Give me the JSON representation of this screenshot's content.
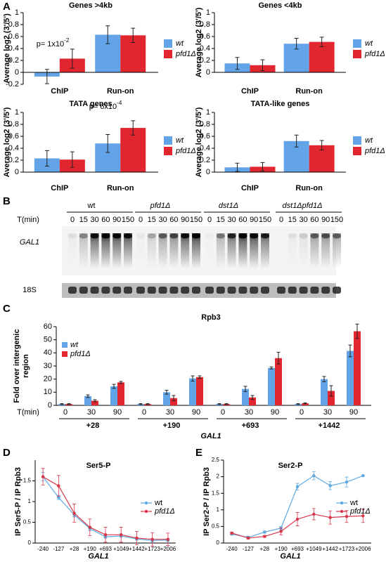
{
  "panel_labels": [
    "A",
    "B",
    "C",
    "D",
    "E"
  ],
  "blot": {
    "strains": [
      "wt",
      "pfd1Δ",
      "dst1Δ",
      "dst1Δpfd1Δ"
    ],
    "time_label": "T(min)",
    "times": [
      0,
      15,
      30,
      60,
      90,
      150,
      0,
      15,
      30,
      60,
      90,
      150,
      0,
      15,
      30,
      60,
      90,
      150,
      0,
      15,
      30,
      60,
      90,
      150
    ],
    "gene_label": "GAL1",
    "loading_label": "18S"
  },
  "chart_data": [
    {
      "type": "bar",
      "title": "Genes >4kb",
      "ylabel": "Average log2 (3'/5')",
      "categories": [
        "ChIP",
        "Run-on"
      ],
      "series": [
        {
          "name": "wt",
          "color": "#63a4e8",
          "values": [
            -0.07,
            0.63
          ],
          "errors": [
            0.12,
            0.15
          ]
        },
        {
          "name": "pfd1Δ",
          "color": "#e2262f",
          "values": [
            0.23,
            0.62
          ],
          "errors": [
            0.16,
            0.12
          ]
        }
      ],
      "ylim": [
        -0.2,
        1
      ],
      "yticks": [
        -0.2,
        0,
        0.2,
        0.4,
        0.6,
        0.8,
        1
      ],
      "annotations": [
        {
          "text": "p= 1x10",
          "superscript": "-2"
        }
      ]
    },
    {
      "type": "bar",
      "title": "Genes <4kb",
      "ylabel": "Average log2 (3'/5')",
      "categories": [
        "ChIP",
        "Run-on"
      ],
      "series": [
        {
          "name": "wt",
          "color": "#63a4e8",
          "values": [
            0.15,
            0.48
          ],
          "errors": [
            0.1,
            0.09
          ]
        },
        {
          "name": "pfd1Δ",
          "color": "#e2262f",
          "values": [
            0.12,
            0.51
          ],
          "errors": [
            0.09,
            0.08
          ]
        }
      ],
      "ylim": [
        0,
        1
      ],
      "yticks": [
        0,
        0.2,
        0.4,
        0.6,
        0.8,
        1
      ]
    },
    {
      "type": "bar",
      "title": "TATA genes",
      "ylabel": "Average log2 (3'/5')",
      "categories": [
        "ChIP",
        "Run-on"
      ],
      "series": [
        {
          "name": "wt",
          "color": "#63a4e8",
          "values": [
            0.23,
            0.48
          ],
          "errors": [
            0.13,
            0.15
          ]
        },
        {
          "name": "pfd1Δ",
          "color": "#e2262f",
          "values": [
            0.21,
            0.74
          ],
          "errors": [
            0.13,
            0.12
          ]
        }
      ],
      "ylim": [
        0,
        1
      ],
      "yticks": [
        0,
        0.2,
        0.4,
        0.6,
        0.8,
        1
      ],
      "annotations": [
        {
          "text": "p= 6x10",
          "superscript": "-4"
        }
      ]
    },
    {
      "type": "bar",
      "title": "TATA-like genes",
      "ylabel": "Average log2 (3'/5')",
      "categories": [
        "ChIP",
        "Run-on"
      ],
      "series": [
        {
          "name": "wt",
          "color": "#63a4e8",
          "values": [
            0.08,
            0.52
          ],
          "errors": [
            0.07,
            0.1
          ]
        },
        {
          "name": "pfd1Δ",
          "color": "#e2262f",
          "values": [
            0.09,
            0.45
          ],
          "errors": [
            0.07,
            0.08
          ]
        }
      ],
      "ylim": [
        0,
        1
      ],
      "yticks": [
        0,
        0.2,
        0.4,
        0.6,
        0.8,
        1
      ]
    },
    {
      "type": "grouped_bar",
      "title": "Rpb3",
      "ylabel": [
        "Fold over intergenic",
        "region"
      ],
      "xlabel": "GAL1",
      "category_axis_label": "T(min)",
      "groups": [
        "+28",
        "+190",
        "+693",
        "+1442"
      ],
      "categories": [
        "0",
        "30",
        "90",
        "0",
        "30",
        "90",
        "0",
        "30",
        "90",
        "0",
        "30",
        "90"
      ],
      "series": [
        {
          "name": "wt",
          "color": "#63a4e8",
          "values": [
            1,
            7,
            14.5,
            1,
            10,
            20.5,
            1,
            12.5,
            28.5,
            1,
            20,
            41.5
          ],
          "errors": [
            0.3,
            1,
            1.5,
            0.3,
            1.5,
            2,
            0.3,
            2,
            0.8,
            0.3,
            2,
            4.5
          ]
        },
        {
          "name": "pfd1Δ",
          "color": "#e2262f",
          "values": [
            1,
            3.5,
            17.5,
            1,
            5.5,
            21.5,
            1,
            6,
            36,
            1.5,
            11,
            56.5
          ],
          "errors": [
            0.3,
            0.8,
            0.8,
            0.3,
            2,
            1,
            0.3,
            1.5,
            4.5,
            0.3,
            4,
            5.5
          ]
        }
      ],
      "ylim": [
        0,
        60
      ],
      "yticks": [
        0,
        10,
        20,
        30,
        40,
        50,
        60
      ]
    },
    {
      "type": "line",
      "title": "Ser5-P",
      "ylabel": "IP Ser5-P / IP Rpb3",
      "xlabel": "GAL1",
      "categories": [
        "-240",
        "-127",
        "+28",
        "+190",
        "+693",
        "+1049",
        "+1442",
        "+1723",
        "+2006"
      ],
      "series": [
        {
          "name": "wt",
          "color": "#5fa8e0",
          "values": [
            1.6,
            1.1,
            0.68,
            0.35,
            0.15,
            0.17,
            0.1,
            0.06,
            0.07
          ],
          "errors": [
            0.1,
            0.05,
            0.05,
            0.05,
            0.03,
            0.03,
            0.03,
            0.03,
            0.03
          ]
        },
        {
          "name": "pfd1Δ",
          "color": "#d8364a",
          "values": [
            1.6,
            1.38,
            0.72,
            0.38,
            0.2,
            0.2,
            0.12,
            0.09,
            0.09
          ],
          "errors": [
            0.2,
            0.25,
            0.22,
            0.2,
            0.18,
            0.18,
            0.16,
            0.16,
            0.15
          ]
        }
      ],
      "ylim": [
        0,
        2
      ],
      "yticks": [
        0,
        0.5,
        1,
        1.5
      ]
    },
    {
      "type": "line",
      "title": "Ser2-P",
      "ylabel": "IP Ser2-P / IP Rpb3",
      "xlabel": "GAL1",
      "categories": [
        "-240",
        "-127",
        "+28",
        "+190",
        "+693",
        "+1049",
        "+1442",
        "+1723",
        "+2006"
      ],
      "series": [
        {
          "name": "wt",
          "color": "#5fa8e0",
          "values": [
            0.27,
            0.17,
            0.33,
            0.45,
            1.7,
            2.03,
            1.73,
            1.84,
            2.03
          ],
          "errors": [
            0.03,
            0.03,
            0.03,
            0.05,
            0.1,
            0.12,
            0.12,
            0.15,
            0.02
          ]
        },
        {
          "name": "pfd1Δ",
          "color": "#d8364a",
          "values": [
            0.3,
            0.15,
            0.2,
            0.35,
            0.72,
            0.87,
            0.77,
            0.8,
            0.82
          ],
          "errors": [
            0.03,
            0.03,
            0.03,
            0.1,
            0.2,
            0.17,
            0.2,
            0.18,
            0.2
          ]
        }
      ],
      "ylim": [
        0,
        2.5
      ],
      "yticks": [
        0,
        0.5,
        1,
        1.5,
        2,
        2.5
      ]
    }
  ]
}
